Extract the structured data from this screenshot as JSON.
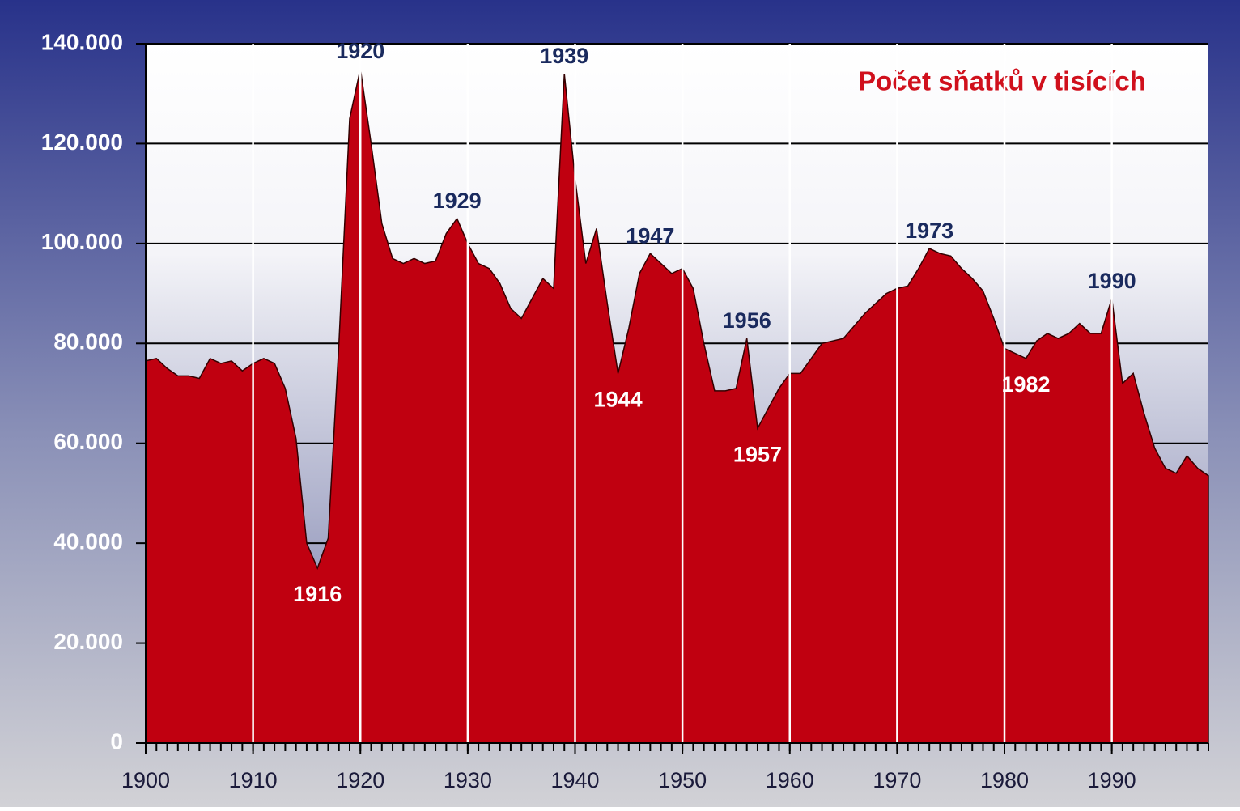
{
  "chart_data": {
    "type": "area",
    "title": "Počet sňatků v tisících",
    "color": "#c00010",
    "x": [
      1900,
      1901,
      1902,
      1903,
      1904,
      1905,
      1906,
      1907,
      1908,
      1909,
      1910,
      1911,
      1912,
      1913,
      1914,
      1915,
      1916,
      1917,
      1918,
      1919,
      1920,
      1921,
      1922,
      1923,
      1924,
      1925,
      1926,
      1927,
      1928,
      1929,
      1930,
      1931,
      1932,
      1933,
      1934,
      1935,
      1936,
      1937,
      1938,
      1939,
      1940,
      1941,
      1942,
      1943,
      1944,
      1945,
      1946,
      1947,
      1948,
      1949,
      1950,
      1951,
      1952,
      1953,
      1954,
      1955,
      1956,
      1957,
      1958,
      1959,
      1960,
      1961,
      1962,
      1963,
      1964,
      1965,
      1966,
      1967,
      1968,
      1969,
      1970,
      1971,
      1972,
      1973,
      1974,
      1975,
      1976,
      1977,
      1978,
      1979,
      1980,
      1981,
      1982,
      1983,
      1984,
      1985,
      1986,
      1987,
      1988,
      1989,
      1990,
      1991,
      1992,
      1993,
      1994,
      1995,
      1996,
      1997,
      1998,
      1999
    ],
    "values": [
      76500,
      77000,
      75000,
      73500,
      73500,
      73000,
      77000,
      76000,
      76500,
      74500,
      76000,
      77000,
      76000,
      71000,
      61000,
      40000,
      35000,
      41000,
      80000,
      125000,
      135000,
      120000,
      104000,
      97000,
      96000,
      97000,
      96000,
      96500,
      102000,
      105000,
      100000,
      96000,
      95000,
      92000,
      87000,
      85000,
      89000,
      93000,
      91000,
      134000,
      113000,
      96000,
      103000,
      88000,
      74000,
      83000,
      94000,
      98000,
      96000,
      94000,
      95000,
      91000,
      80000,
      70500,
      70500,
      71000,
      81000,
      63000,
      67000,
      71000,
      74000,
      74000,
      77000,
      80000,
      80500,
      81000,
      83500,
      86000,
      88000,
      90000,
      91000,
      91500,
      95000,
      99000,
      98000,
      97500,
      95000,
      93000,
      90500,
      85000,
      79000,
      78000,
      77000,
      80500,
      82000,
      81000,
      82000,
      84000,
      82000,
      82000,
      89000,
      72000,
      74000,
      66000,
      59000,
      55000,
      54000,
      57500,
      55000,
      53500
    ],
    "xlim": [
      1900,
      1999
    ],
    "xticks": [
      1900,
      1910,
      1920,
      1930,
      1940,
      1950,
      1960,
      1970,
      1980,
      1990
    ],
    "ylim": [
      0,
      140000
    ],
    "yticks": [
      0,
      {
        "value": 20000,
        "label": "20.000"
      },
      {
        "value": 40000,
        "label": "40.000"
      },
      {
        "value": 60000,
        "label": "60.000"
      },
      {
        "value": 80000,
        "label": "80.000"
      },
      {
        "value": 100000,
        "label": "100.000"
      },
      {
        "value": 120000,
        "label": "120.000"
      },
      {
        "value": 140000,
        "label": "140.000"
      }
    ],
    "grid": true,
    "annotations": [
      {
        "label": "1916",
        "x": 1916,
        "position": "below",
        "color": "#ffffff"
      },
      {
        "label": "1920",
        "x": 1920,
        "position": "above",
        "color": "#1a2a5e"
      },
      {
        "label": "1929",
        "x": 1929,
        "position": "above",
        "color": "#1a2a5e"
      },
      {
        "label": "1939",
        "x": 1939,
        "position": "above",
        "color": "#1a2a5e"
      },
      {
        "label": "1944",
        "x": 1944,
        "position": "below",
        "color": "#ffffff"
      },
      {
        "label": "1947",
        "x": 1947,
        "position": "above",
        "color": "#1a2a5e"
      },
      {
        "label": "1956",
        "x": 1956,
        "position": "above",
        "color": "#1a2a5e"
      },
      {
        "label": "1957",
        "x": 1957,
        "position": "below",
        "color": "#ffffff"
      },
      {
        "label": "1973",
        "x": 1973,
        "position": "above",
        "color": "#1a2a5e"
      },
      {
        "label": "1982",
        "x": 1982,
        "position": "below",
        "color": "#ffffff"
      },
      {
        "label": "1990",
        "x": 1990,
        "position": "above",
        "color": "#1a2a5e"
      }
    ]
  }
}
